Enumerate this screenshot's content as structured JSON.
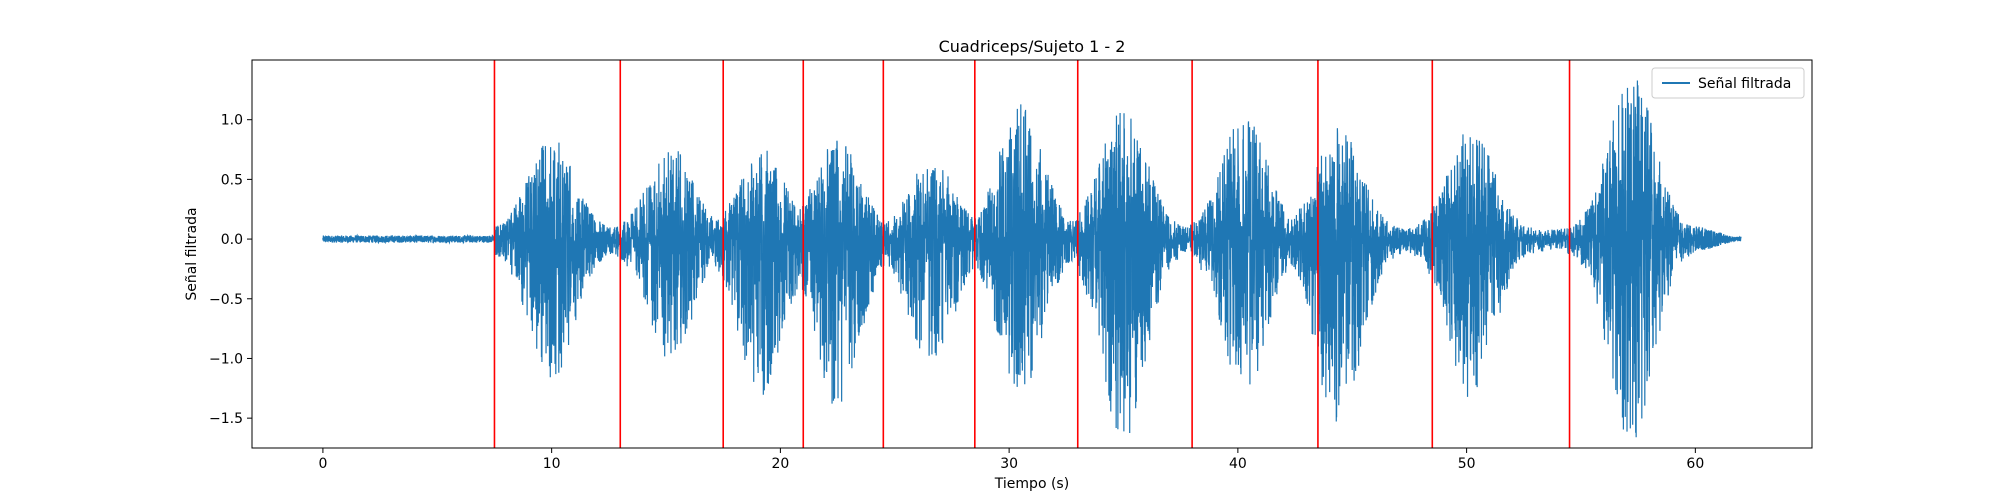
{
  "chart_data": {
    "type": "line",
    "title": "Cuadriceps/Sujeto 1 - 2",
    "xlabel": "Tiempo (s)",
    "ylabel": "Señal filtrada",
    "xlim": [
      -3.1,
      65.1
    ],
    "ylim": [
      -1.75,
      1.5
    ],
    "xticks": [
      0,
      10,
      20,
      30,
      40,
      50,
      60
    ],
    "yticks": [
      -1.5,
      -1.0,
      -0.5,
      0.0,
      0.5,
      1.0
    ],
    "xtick_labels": [
      "0",
      "10",
      "20",
      "30",
      "40",
      "50",
      "60"
    ],
    "ytick_labels": [
      "−1.5",
      "−1.0",
      "−0.5",
      "0.0",
      "0.5",
      "1.0"
    ],
    "grid": false,
    "legend": {
      "position": "upper right",
      "entries": [
        "Señal filtrada"
      ]
    },
    "series": [
      {
        "name": "Señal filtrada",
        "color": "#1f77b4",
        "x_range": [
          0,
          62
        ],
        "baseline_amplitude": [
          [
            0,
            0.03
          ],
          [
            7.5,
            0.03
          ]
        ],
        "bursts": [
          {
            "center": 10.0,
            "peak_pos": 0.8,
            "peak_neg": -1.1
          },
          {
            "center": 15.2,
            "peak_pos": 0.7,
            "peak_neg": -0.92
          },
          {
            "center": 19.2,
            "peak_pos": 0.68,
            "peak_neg": -1.25
          },
          {
            "center": 22.5,
            "peak_pos": 0.77,
            "peak_neg": -1.33
          },
          {
            "center": 26.6,
            "peak_pos": 0.6,
            "peak_neg": -0.97
          },
          {
            "center": 30.5,
            "peak_pos": 1.05,
            "peak_neg": -1.2
          },
          {
            "center": 35.0,
            "peak_pos": 1.08,
            "peak_neg": -1.6
          },
          {
            "center": 40.3,
            "peak_pos": 0.98,
            "peak_neg": -1.2
          },
          {
            "center": 44.4,
            "peak_pos": 0.87,
            "peak_neg": -1.5
          },
          {
            "center": 50.2,
            "peak_pos": 0.86,
            "peak_neg": -1.25
          },
          {
            "center": 57.2,
            "peak_pos": 1.35,
            "peak_neg": -1.6
          }
        ]
      }
    ],
    "vertical_lines": {
      "color": "#ff0000",
      "x": [
        7.5,
        13.0,
        17.5,
        21.0,
        24.5,
        28.5,
        33.0,
        38.0,
        43.5,
        48.5,
        54.5
      ]
    }
  }
}
